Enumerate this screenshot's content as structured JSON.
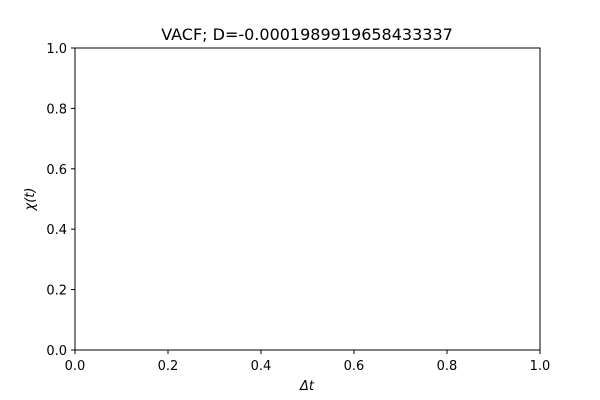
{
  "chart_data": {
    "type": "line",
    "title": "VACF; D=-0.0001989919658433337",
    "xlabel": "Δt",
    "ylabel": "χ(t)",
    "xlim": [
      0,
      1
    ],
    "ylim": [
      0,
      1
    ],
    "xticks": [
      "0.0",
      "0.2",
      "0.4",
      "0.6",
      "0.8",
      "1.0"
    ],
    "yticks": [
      "0.0",
      "0.2",
      "0.4",
      "0.6",
      "0.8",
      "1.0"
    ],
    "series": [],
    "grid": false
  }
}
